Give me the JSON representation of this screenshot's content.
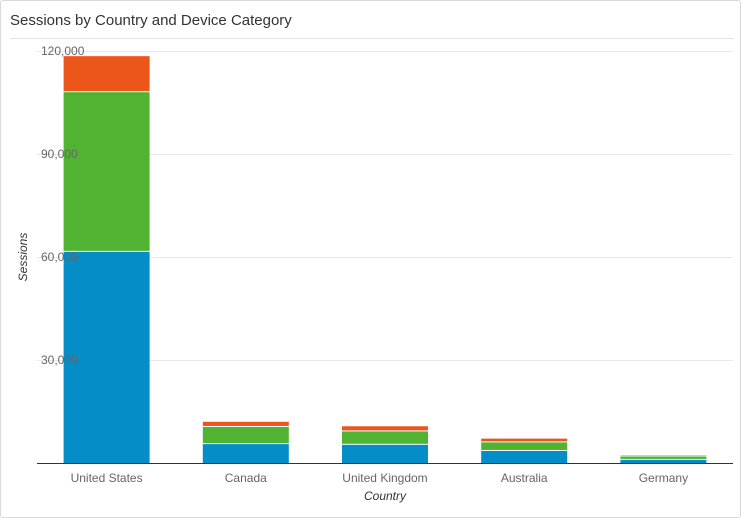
{
  "title": "Sessions by Country and Device Category",
  "chart_data": {
    "type": "bar",
    "stacked": true,
    "title": "Sessions by Country and Device Category",
    "xlabel": "Country",
    "ylabel": "Sessions",
    "ylim": [
      0,
      120000
    ],
    "yticks": [
      30000,
      60000,
      90000,
      120000
    ],
    "ytick_labels": [
      "30,000",
      "60,000",
      "90,000",
      "120,000"
    ],
    "grid": true,
    "legend": "none",
    "categories": [
      "United States",
      "Canada",
      "United Kingdom",
      "Australia",
      "Germany"
    ],
    "series": [
      {
        "color": "#058dc7",
        "values": [
          61500,
          5500,
          5300,
          3500,
          900
        ]
      },
      {
        "color": "#50b432",
        "values": [
          46500,
          5000,
          3900,
          2500,
          1000
        ]
      },
      {
        "color": "#ed561b",
        "values": [
          10500,
          1500,
          1500,
          1100,
          400
        ]
      }
    ]
  }
}
